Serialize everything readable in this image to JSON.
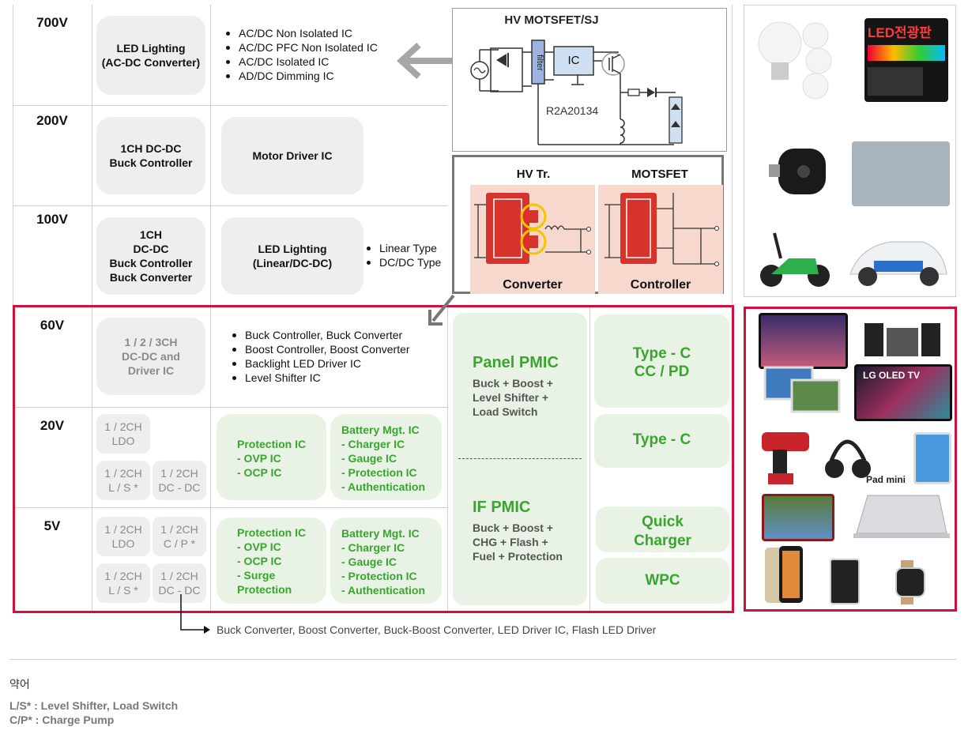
{
  "voltages": [
    "700V",
    "200V",
    "100V",
    "60V",
    "20V",
    "5V"
  ],
  "row_700": {
    "block": "LED Lighting\n(AC-DC Converter)",
    "bullets": [
      "AC/DC Non Isolated IC",
      "AC/DC PFC Non Isolated IC",
      "AC/DC Isolated IC",
      "AD/DC Dimming IC"
    ]
  },
  "row_200": {
    "block": "1CH DC-DC\nBuck Controller",
    "block2": "Motor Driver IC"
  },
  "row_100": {
    "block": "1CH\nDC-DC\nBuck Controller\nBuck Converter",
    "block2": "LED Lighting\n(Linear/DC-DC)",
    "bullets": [
      "Linear Type",
      "DC/DC Type"
    ]
  },
  "row_60": {
    "block": "1 / 2 / 3CH\nDC-DC and\nDriver IC",
    "bullets": [
      "Buck Controller, Buck Converter",
      "Boost Controller, Boost Converter",
      "Backlight LED Driver IC",
      "Level Shifter IC"
    ]
  },
  "row_20": {
    "ldo": "1 / 2CH\nLDO",
    "ls": "1 / 2CH\nL / S *",
    "dcdc": "1 / 2CH\nDC - DC",
    "protection": "Protection IC\n- OVP IC\n- OCP IC",
    "battery": "Battery Mgt. IC\n- Charger IC\n- Gauge IC\n- Protection IC\n- Authentication"
  },
  "row_5": {
    "ldo": "1 / 2CH\nLDO",
    "cp": "1 / 2CH\nC / P *",
    "ls": "1 / 2CH\nL / S *",
    "dcdc": "1 / 2CH\nDC - DC",
    "protection": "Protection IC\n- OVP IC\n- OCP IC\n- Surge\n  Protection",
    "battery": "Battery Mgt. IC\n- Charger IC\n- Gauge IC\n- Protection IC\n- Authentication"
  },
  "pmic": {
    "panel_title": "Panel PMIC",
    "panel_desc": "Buck + Boost +\nLevel Shifter +\nLoad Switch",
    "if_title": "IF PMIC",
    "if_desc": "Buck + Boost +\nCHG + Flash +\nFuel  + Protection"
  },
  "right_col": {
    "typec_ccpd": "Type - C\nCC / PD",
    "typec": "Type - C",
    "quick": "Quick\nCharger",
    "wpc": "WPC"
  },
  "schematic": {
    "title": "HV MOTSFET/SJ",
    "filter": "filter",
    "ic": "IC",
    "part": "R2A20134"
  },
  "hv_panel": {
    "left_title": "HV Tr.",
    "right_title": "MOTSFET",
    "left_caption": "Converter",
    "right_caption": "Controller"
  },
  "photos": {
    "led_sign_text": "LED전광판",
    "pad_label": "Pad mini",
    "tv_label": "LG OLED TV"
  },
  "footnote_arrow": "Buck Converter, Boost Converter, Buck-Boost Converter, LED Driver IC, Flash LED Driver",
  "legend": {
    "title": "약어",
    "items": [
      "L/S* : Level Shifter, Load Switch",
      "C/P* : Charge Pump"
    ]
  },
  "colors": {
    "red": "#d0103a",
    "green": "#3aa52e",
    "green_bg": "#e8f3e6",
    "grey_bg": "#eeeeee"
  }
}
